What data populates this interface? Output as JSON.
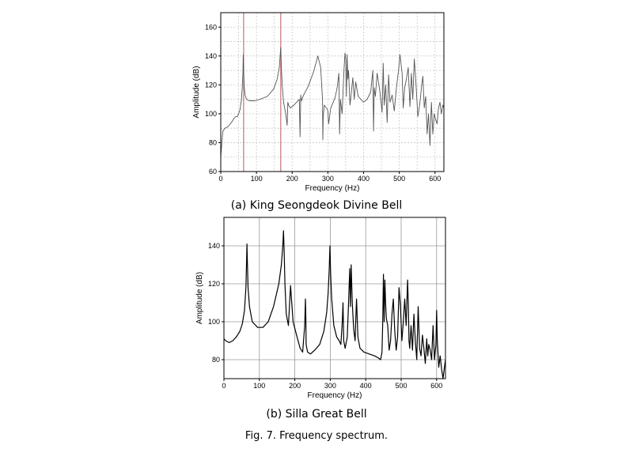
{
  "figure_caption": "Fig. 7. Frequency spectrum.",
  "chart_data": [
    {
      "type": "line",
      "caption": "(a) King Seongdeok Divine Bell",
      "xlabel": "Frequency (Hz)",
      "ylabel": "Amplitude (dB)",
      "xlim": [
        0,
        625
      ],
      "ylim": [
        60,
        170
      ],
      "xticks": [
        0,
        100,
        200,
        300,
        400,
        500,
        600
      ],
      "yticks": [
        60,
        80,
        100,
        120,
        140,
        160
      ],
      "grid": true,
      "line_color": "#555555",
      "marker_color": "#c0504d",
      "marker_lines_x": [
        64,
        168
      ],
      "series": [
        {
          "x": [
            0,
            3,
            6,
            12,
            20,
            30,
            38,
            42,
            46,
            50,
            54,
            58,
            60,
            62,
            63,
            64,
            65,
            66,
            68,
            72,
            80,
            95,
            110,
            130,
            148,
            158,
            164,
            166,
            168,
            170,
            172,
            176,
            182,
            186,
            188,
            190,
            195,
            205,
            220,
            222,
            224,
            226,
            232,
            245,
            260,
            272,
            280,
            285,
            286,
            287,
            290,
            296,
            300,
            302,
            308,
            315,
            320,
            326,
            331,
            333,
            335,
            340,
            345,
            348,
            350,
            352,
            354,
            356,
            358,
            362,
            366,
            370,
            374,
            378,
            385,
            400,
            410,
            420,
            426,
            428,
            430,
            433,
            438,
            446,
            452,
            455,
            458,
            462,
            466,
            470,
            474,
            480,
            486,
            492,
            498,
            502,
            505,
            508,
            511,
            515,
            520,
            525,
            530,
            534,
            538,
            542,
            547,
            552,
            558,
            562,
            566,
            570,
            574,
            578,
            582,
            586,
            590,
            594,
            598,
            602,
            606,
            610,
            614,
            618,
            622,
            625
          ],
          "y": [
            70,
            80,
            88,
            90,
            91,
            94,
            97,
            98,
            98,
            100,
            103,
            110,
            118,
            128,
            141,
            133,
            124,
            118,
            113,
            110,
            109,
            109,
            110,
            112,
            117,
            124,
            132,
            139,
            146,
            131,
            120,
            108,
            100,
            92,
            108,
            106,
            104,
            106,
            110,
            84,
            113,
            109,
            113,
            119,
            129,
            140,
            132,
            110,
            82,
            98,
            106,
            104,
            102,
            93,
            104,
            108,
            111,
            118,
            128,
            86,
            110,
            100,
            130,
            142,
            138,
            112,
            141,
            124,
            130,
            106,
            115,
            125,
            110,
            122,
            112,
            108,
            110,
            115,
            130,
            88,
            118,
            112,
            128,
            115,
            101,
            135,
            106,
            120,
            94,
            127,
            108,
            113,
            102,
            118,
            130,
            141,
            134,
            128,
            104,
            118,
            124,
            132,
            105,
            128,
            110,
            138,
            120,
            98,
            108,
            118,
            126,
            104,
            112,
            86,
            100,
            78,
            108,
            86,
            100,
            96,
            93,
            104,
            108,
            100,
            106,
            104
          ]
        }
      ]
    },
    {
      "type": "line",
      "caption": "(b) Silla Great Bell",
      "xlabel": "Frequency (Hz)",
      "ylabel": "Amplitude (dB)",
      "xlim": [
        0,
        625
      ],
      "ylim": [
        70,
        155
      ],
      "xticks": [
        0,
        100,
        200,
        300,
        400,
        500,
        600
      ],
      "yticks": [
        80,
        100,
        120,
        140
      ],
      "grid": true,
      "line_color": "#000000",
      "series": [
        {
          "x": [
            0,
            5,
            15,
            25,
            35,
            45,
            52,
            58,
            62,
            64,
            65,
            66,
            68,
            72,
            80,
            95,
            110,
            125,
            140,
            155,
            162,
            166,
            168,
            170,
            172,
            176,
            182,
            188,
            195,
            205,
            215,
            222,
            228,
            230,
            231,
            232,
            236,
            244,
            256,
            270,
            282,
            290,
            294,
            297,
            299,
            301,
            304,
            310,
            318,
            325,
            330,
            334,
            336,
            338,
            342,
            348,
            352,
            355,
            357,
            359,
            362,
            366,
            370,
            372,
            374,
            378,
            384,
            395,
            410,
            425,
            435,
            442,
            446,
            448,
            450,
            452,
            454,
            456,
            458,
            462,
            466,
            470,
            474,
            478,
            482,
            486,
            490,
            494,
            498,
            502,
            506,
            510,
            514,
            518,
            520,
            522,
            524,
            528,
            532,
            536,
            540,
            544,
            548,
            552,
            556,
            560,
            564,
            568,
            572,
            575,
            578,
            582,
            586,
            590,
            594,
            598,
            600,
            602,
            606,
            610,
            614,
            618,
            622,
            625
          ],
          "y": [
            91,
            90,
            89,
            90,
            92,
            95,
            99,
            106,
            118,
            133,
            141,
            132,
            118,
            108,
            100,
            97,
            97,
            100,
            108,
            120,
            130,
            140,
            148,
            136,
            120,
            104,
            98,
            119,
            100,
            93,
            86,
            84,
            98,
            112,
            103,
            88,
            84,
            83,
            85,
            88,
            95,
            105,
            115,
            128,
            140,
            126,
            112,
            98,
            92,
            90,
            88,
            100,
            110,
            90,
            86,
            92,
            112,
            128,
            108,
            130,
            110,
            96,
            90,
            102,
            112,
            92,
            86,
            84,
            83,
            82,
            81,
            80,
            84,
            100,
            125,
            100,
            122,
            110,
            102,
            98,
            85,
            90,
            104,
            112,
            95,
            85,
            92,
            118,
            108,
            90,
            100,
            112,
            98,
            122,
            110,
            90,
            86,
            98,
            85,
            104,
            90,
            80,
            108,
            86,
            82,
            93,
            86,
            78,
            91,
            82,
            88,
            85,
            80,
            98,
            80,
            88,
            106,
            90,
            76,
            82,
            75,
            70,
            76,
            80
          ]
        }
      ]
    }
  ]
}
